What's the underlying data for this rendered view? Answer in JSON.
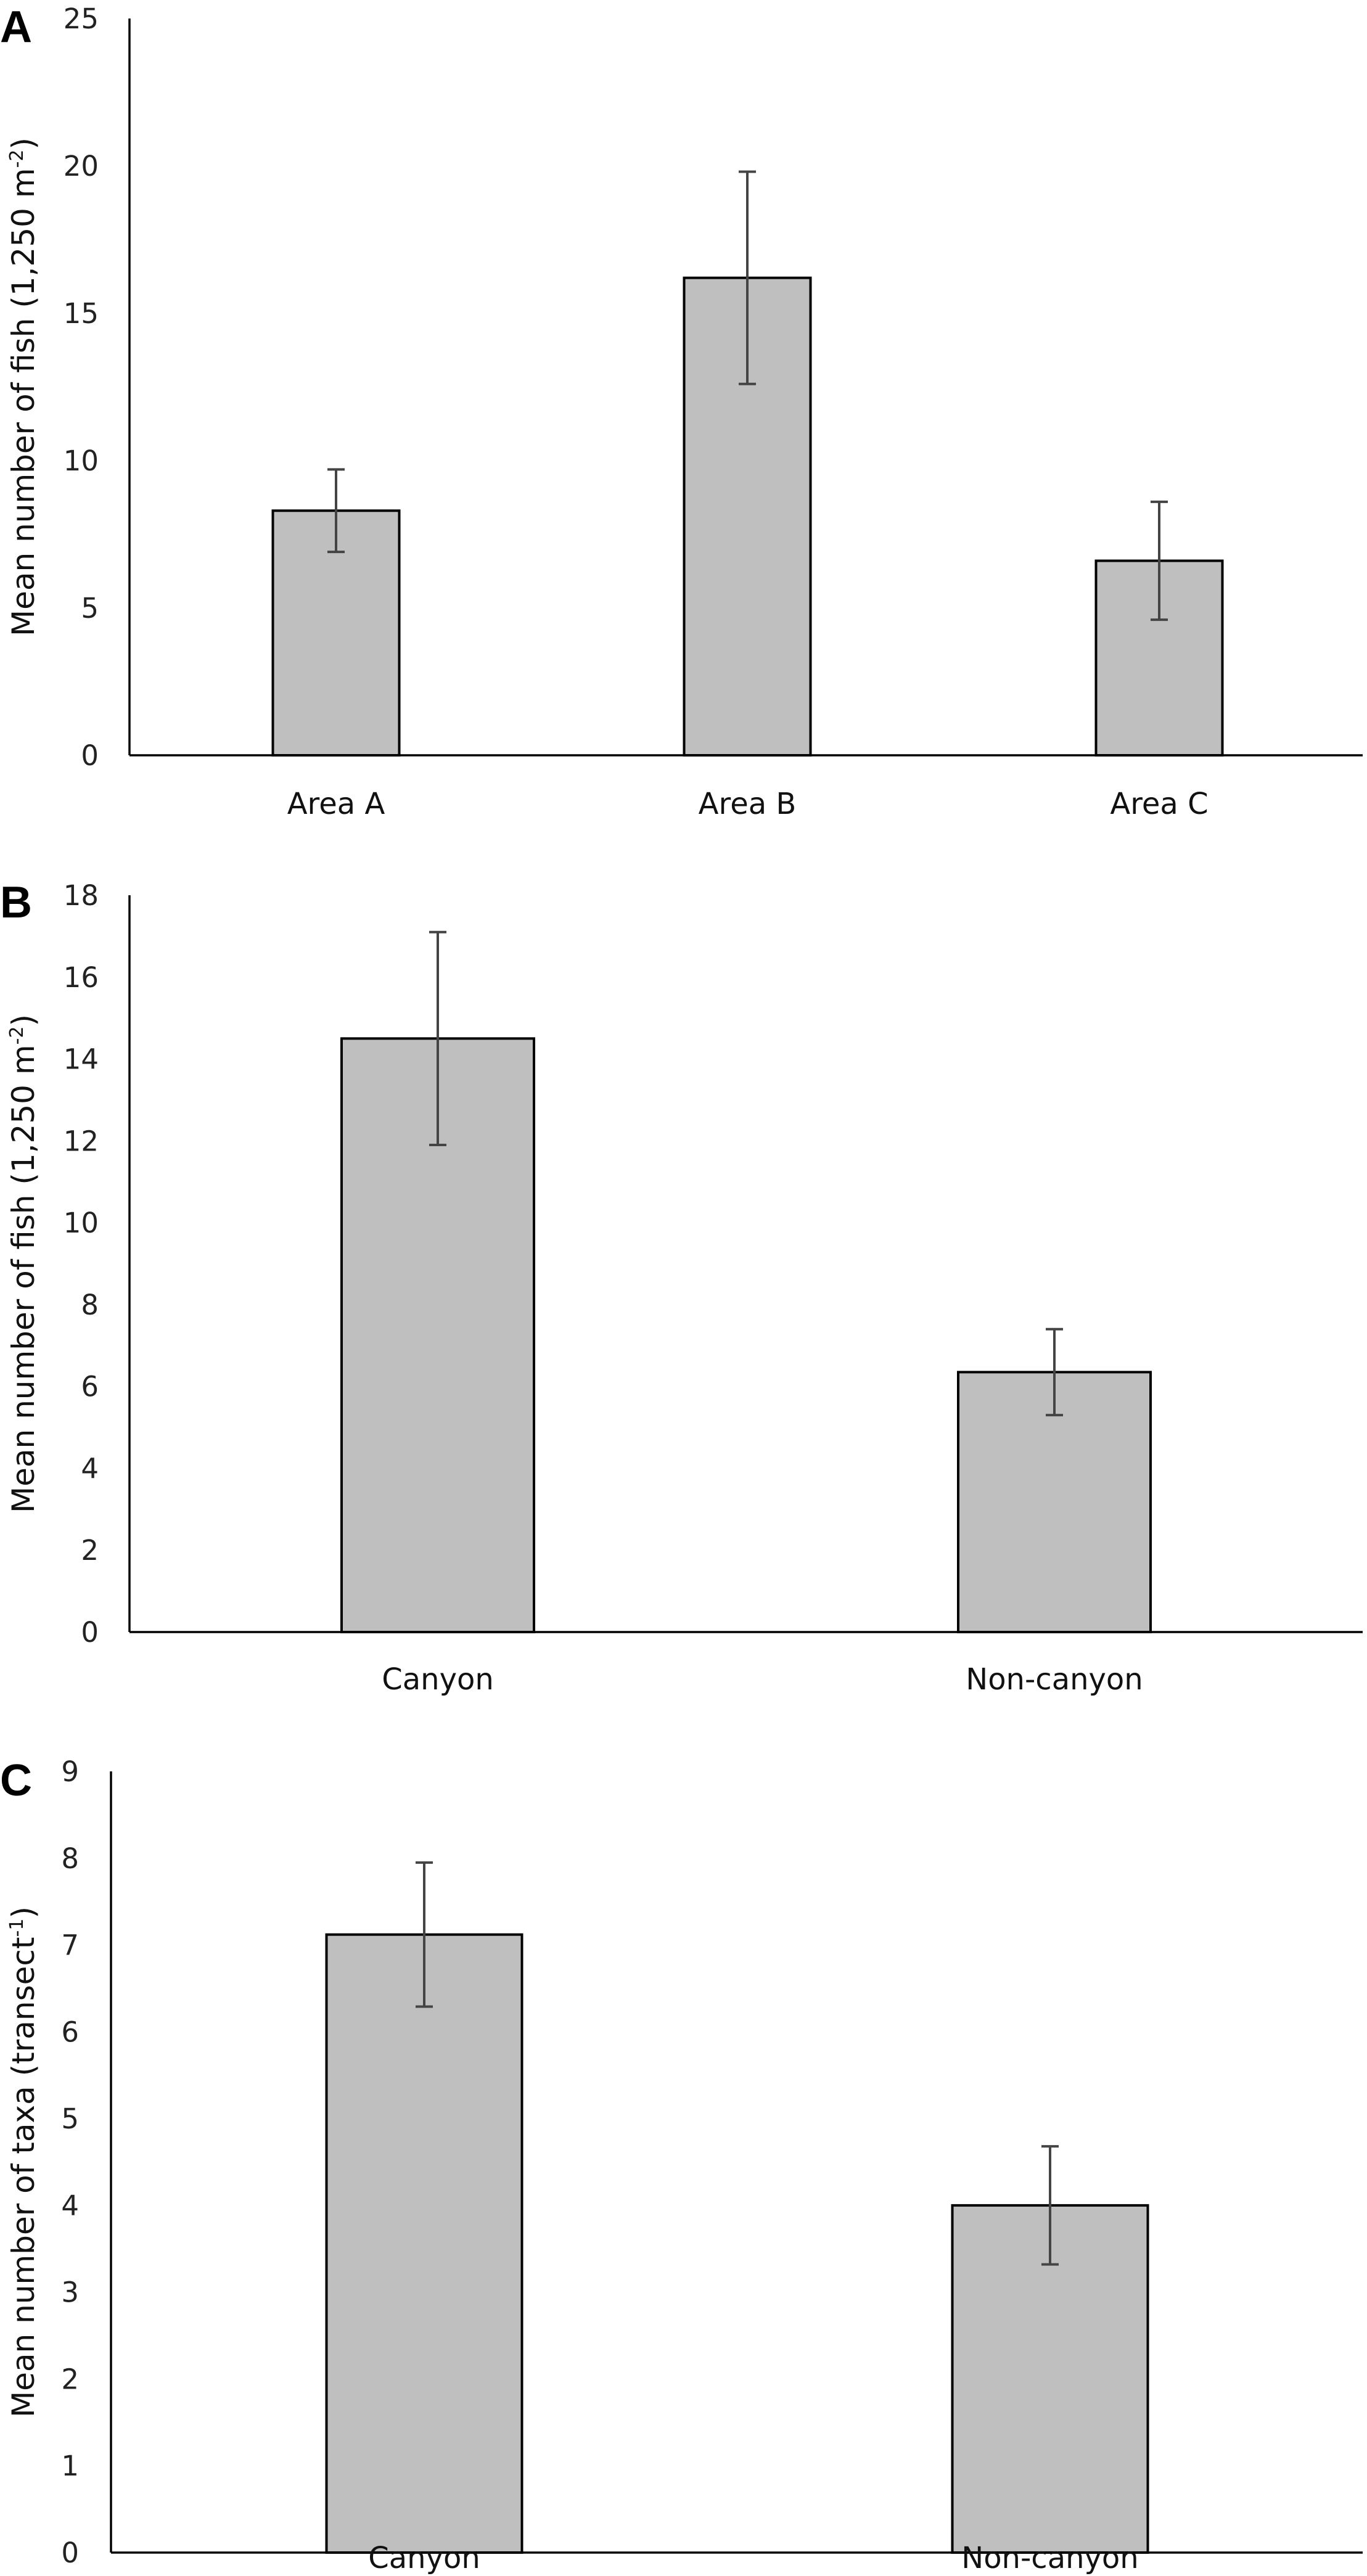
{
  "colors": {
    "bar_fill": "#bfbfbf",
    "bar_stroke": "#000000",
    "error_bar": "#444444",
    "axis": "#000000"
  },
  "chart_data": [
    {
      "panel": "A",
      "type": "bar",
      "categories": [
        "Area A",
        "Area B",
        "Area C"
      ],
      "values": [
        8.3,
        16.2,
        6.6
      ],
      "errors": [
        1.4,
        3.6,
        2.0
      ],
      "ylabel_main": "Mean number of fish  (1,250 m",
      "ylabel_sup": "-2",
      "ylabel_tail": ")",
      "ylim": [
        0,
        25
      ],
      "yticks": [
        0,
        5,
        10,
        15,
        20,
        25
      ],
      "grid": false
    },
    {
      "panel": "B",
      "type": "bar",
      "categories": [
        "Canyon",
        "Non-canyon"
      ],
      "values": [
        14.5,
        6.35
      ],
      "errors": [
        2.6,
        1.05
      ],
      "ylabel_main": "Mean number of fish  (1,250 m",
      "ylabel_sup": "-2",
      "ylabel_tail": ")",
      "ylim": [
        0,
        18
      ],
      "yticks": [
        0,
        2,
        4,
        6,
        8,
        10,
        12,
        14,
        16,
        18
      ],
      "grid": false
    },
    {
      "panel": "C",
      "type": "bar",
      "categories": [
        "Canyon",
        "Non-canyon"
      ],
      "values": [
        7.12,
        4.0
      ],
      "errors": [
        0.83,
        0.68
      ],
      "ylabel_main": "Mean number of taxa  (transect",
      "ylabel_sup": "-1",
      "ylabel_tail": ")",
      "ylim": [
        0,
        9
      ],
      "yticks": [
        0,
        1,
        2,
        3,
        4,
        5,
        6,
        7,
        8,
        9
      ],
      "grid": false
    }
  ]
}
